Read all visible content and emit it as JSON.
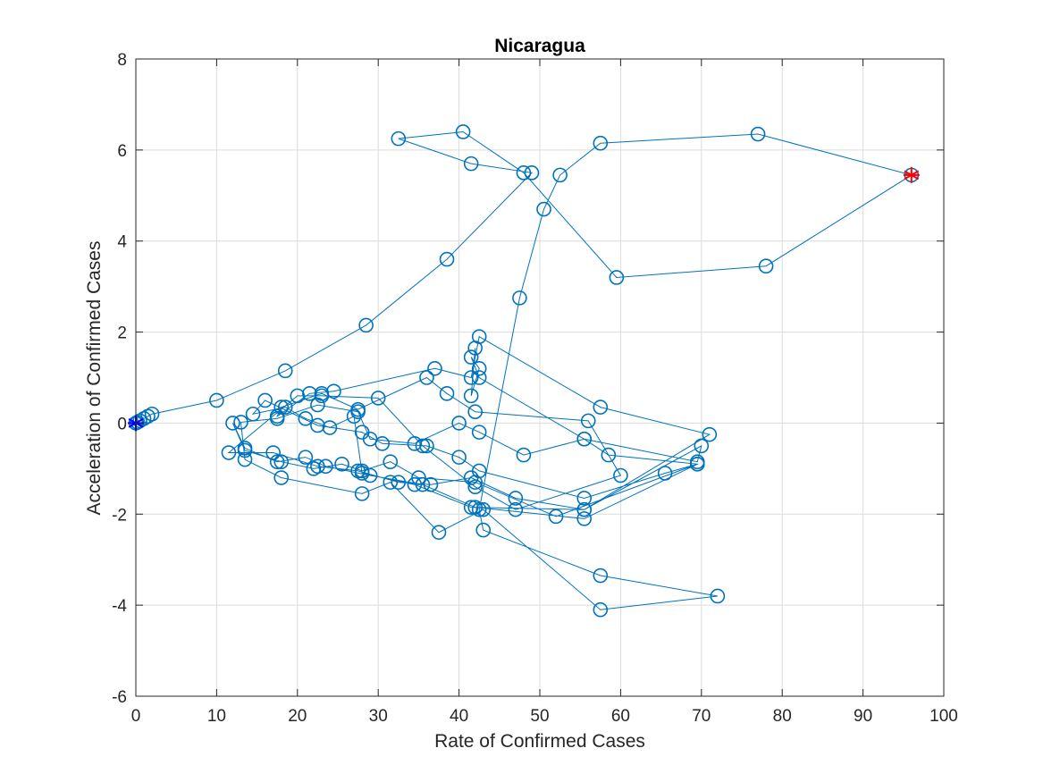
{
  "chart_data": {
    "type": "scatter",
    "title": "Nicaragua",
    "xlabel": "Rate of Confirmed Cases",
    "ylabel": "Acceleration of Confirmed Cases",
    "xlim": [
      0,
      100
    ],
    "ylim": [
      -6,
      8
    ],
    "xticks": [
      "0",
      "10",
      "20",
      "30",
      "40",
      "50",
      "60",
      "70",
      "80",
      "90",
      "100"
    ],
    "yticks": [
      "-6",
      "-4",
      "-2",
      "0",
      "2",
      "4",
      "6",
      "8"
    ],
    "grid": true,
    "line_color": "#0072BD",
    "start_marker_color": "#0000FF",
    "end_marker_color": "#FF0000",
    "series": [
      {
        "x": [
          0,
          0.2,
          0.5,
          1.0,
          1.5,
          2.0,
          10,
          18.5,
          28.5,
          38.5,
          49,
          41.5,
          32.5,
          40.5,
          48,
          59.5,
          78,
          96,
          77,
          57.5,
          52.5,
          50.5,
          47.5,
          42.5,
          43,
          57.5,
          72,
          57.5,
          43,
          37.5,
          31.5,
          28,
          18,
          13.5,
          13,
          17.5,
          22.5,
          27.5,
          29,
          34.5,
          40,
          42.5,
          48,
          55.5,
          58.5,
          69.5,
          55.5,
          42,
          35.5,
          29,
          23.5,
          21,
          17.5,
          13.5,
          12,
          13.5,
          18,
          22,
          25.5,
          28,
          31.5,
          35,
          42,
          52,
          69.5,
          65.5,
          55.5,
          42.5,
          40,
          36,
          30.5,
          28,
          22.5,
          16,
          14.5,
          18.5,
          21,
          24,
          27,
          28,
          34.5,
          41.5,
          55.5,
          71,
          57.5,
          42.5,
          41.5,
          37,
          24.5,
          21.5,
          17.5,
          18,
          23,
          27.5,
          36,
          38.5,
          42,
          56,
          60,
          47,
          42,
          35.5,
          30,
          23,
          20,
          11.5,
          17,
          22.5,
          27.5,
          32.5,
          36.5,
          41.5,
          47,
          55.5,
          70,
          69.5,
          55.5,
          42.5,
          41.5,
          42.5,
          41.5,
          42
        ],
        "y": [
          0,
          0.02,
          0.05,
          0.1,
          0.15,
          0.2,
          0.5,
          1.15,
          2.15,
          3.6,
          5.5,
          5.7,
          6.25,
          6.4,
          5.5,
          3.2,
          3.45,
          5.45,
          6.35,
          6.15,
          5.45,
          4.7,
          2.75,
          -1.9,
          -2.35,
          -3.35,
          -3.8,
          -4.1,
          -1.9,
          -2.4,
          -1.3,
          -1.55,
          -1.2,
          -0.8,
          0.02,
          0.1,
          0.4,
          0.25,
          -0.35,
          -0.45,
          0,
          -0.2,
          -0.7,
          -0.35,
          -0.7,
          -0.9,
          -2.1,
          -1.85,
          -1.35,
          -1.15,
          -0.95,
          -0.75,
          -0.85,
          -0.55,
          0,
          -0.6,
          -0.85,
          -1.0,
          -0.9,
          -1.05,
          -0.85,
          -1.2,
          -1.3,
          -2.05,
          -0.9,
          -1.1,
          -1.65,
          -1.05,
          -0.75,
          -0.5,
          -0.45,
          -0.2,
          -0.05,
          0.5,
          0.2,
          0.35,
          0.1,
          -0.1,
          0.15,
          -1.1,
          -1.35,
          -1.85,
          -1.9,
          -0.25,
          0.35,
          1.9,
          1.0,
          1.2,
          0.7,
          0.65,
          0.15,
          0.35,
          0.65,
          0.3,
          1.0,
          0.65,
          0.25,
          0.05,
          -1.15,
          -1.9,
          -1.4,
          -0.5,
          0.55,
          0.6,
          0.6,
          -0.65,
          -0.65,
          -0.95,
          -1.05,
          -1.3,
          -1.35,
          -1.2,
          -1.65,
          -1.9,
          -0.5,
          -0.85,
          -0.35,
          1.0,
          1.45,
          1.2,
          0.6,
          1.65
        ]
      }
    ]
  }
}
